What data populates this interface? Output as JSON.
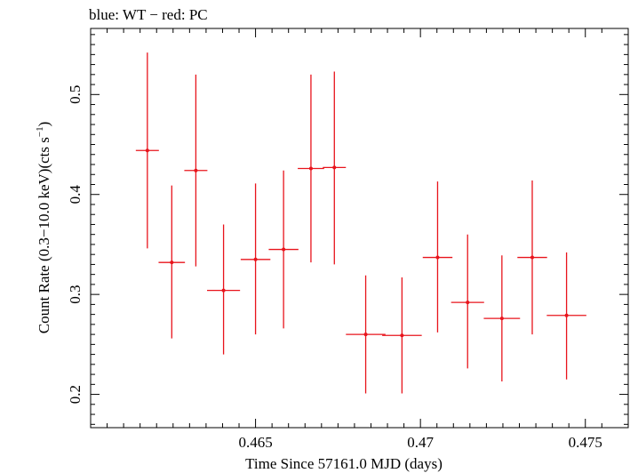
{
  "chart_data": {
    "type": "scatter",
    "title": "blue: WT − red: PC",
    "xlabel": "Time Since 57161.0 MJD (days)",
    "ylabel_main": "Count Rate (0.3−10.0 keV)(cts s",
    "ylabel_sup": "−1",
    "ylabel_end": ")",
    "xlim": [
      0.46,
      0.4763
    ],
    "ylim": [
      0.1667,
      0.5661
    ],
    "xticks": [
      0.465,
      0.47,
      0.475
    ],
    "xtick_labels": [
      "0.465",
      "0.47",
      "0.475"
    ],
    "yticks": [
      0.2,
      0.3,
      0.4,
      0.5
    ],
    "ytick_labels": [
      "0.2",
      "0.3",
      "0.4",
      "0.5"
    ],
    "grid": false,
    "series": [
      {
        "color": "#e8141c",
        "points": [
          {
            "x": 0.46172,
            "y": 0.444,
            "xerr": 0.00035,
            "ylo": 0.346,
            "yhi": 0.542
          },
          {
            "x": 0.46246,
            "y": 0.332,
            "xerr": 0.0004,
            "ylo": 0.256,
            "yhi": 0.409
          },
          {
            "x": 0.46319,
            "y": 0.424,
            "xerr": 0.00035,
            "ylo": 0.328,
            "yhi": 0.52
          },
          {
            "x": 0.46403,
            "y": 0.304,
            "xerr": 0.0005,
            "ylo": 0.24,
            "yhi": 0.37
          },
          {
            "x": 0.465,
            "y": 0.335,
            "xerr": 0.00045,
            "ylo": 0.26,
            "yhi": 0.411
          },
          {
            "x": 0.46585,
            "y": 0.345,
            "xerr": 0.00045,
            "ylo": 0.266,
            "yhi": 0.424
          },
          {
            "x": 0.46668,
            "y": 0.426,
            "xerr": 0.0004,
            "ylo": 0.332,
            "yhi": 0.52
          },
          {
            "x": 0.46739,
            "y": 0.427,
            "xerr": 0.00035,
            "ylo": 0.33,
            "yhi": 0.523
          },
          {
            "x": 0.46834,
            "y": 0.26,
            "xerr": 0.0006,
            "ylo": 0.201,
            "yhi": 0.319
          },
          {
            "x": 0.46944,
            "y": 0.259,
            "xerr": 0.0006,
            "ylo": 0.201,
            "yhi": 0.317
          },
          {
            "x": 0.47052,
            "y": 0.337,
            "xerr": 0.00045,
            "ylo": 0.262,
            "yhi": 0.413
          },
          {
            "x": 0.47143,
            "y": 0.292,
            "xerr": 0.0005,
            "ylo": 0.226,
            "yhi": 0.36
          },
          {
            "x": 0.47247,
            "y": 0.276,
            "xerr": 0.00055,
            "ylo": 0.213,
            "yhi": 0.339
          },
          {
            "x": 0.47339,
            "y": 0.337,
            "xerr": 0.00045,
            "ylo": 0.26,
            "yhi": 0.414
          },
          {
            "x": 0.47443,
            "y": 0.279,
            "xerr": 0.0006,
            "ylo": 0.215,
            "yhi": 0.342
          }
        ]
      }
    ]
  }
}
